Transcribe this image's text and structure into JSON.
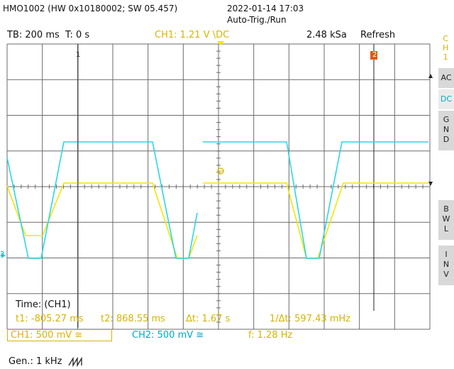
{
  "header": {
    "device": "HMO1002 (HW 0x10180002; SW 05.457)",
    "datetime": "2022-01-14 17:03",
    "trigger_mode": "Auto-Trig./Run"
  },
  "status_bar": {
    "timebase": "TB: 200 ms",
    "time_offset": "T: 0 s",
    "ch1_trigger": "CH1: 1.21 V \\DC",
    "sample_rate": "2.48 kSa",
    "mode": "Refresh"
  },
  "side_menu": {
    "channel_label": [
      "C",
      "H",
      "1"
    ],
    "ac": "AC",
    "dc": "DC",
    "gnd": [
      "G",
      "N",
      "D"
    ],
    "bwl": [
      "B",
      "W",
      "L"
    ],
    "inv": [
      "I",
      "N",
      "V"
    ]
  },
  "markers": {
    "cursor1": "1",
    "cursor2": "2",
    "ch2_ref": "2"
  },
  "cursor_panel": {
    "title": "Time: (CH1)",
    "t1": "t1: -805.27 ms",
    "t2": "t2: 868.55 ms",
    "dt": "Δt: 1.67 s",
    "inv_dt": "1/Δt: 597.43 mHz"
  },
  "channels": {
    "ch1": "CH1: 500 mV ≅",
    "ch2": "CH2: 500 mV ≅",
    "freq": "f: 1.28 Hz"
  },
  "generator": {
    "label": "Gen.: 1 kHz",
    "wave_icon": "sawtooth-icon"
  },
  "colors": {
    "ch1": "#f5e400",
    "ch2": "#29d7e8",
    "grid": "#6b6b6b",
    "label_yellow": "#d6b400",
    "label_cyan": "#00a8c8",
    "marker_orange": "#e05a10"
  }
}
